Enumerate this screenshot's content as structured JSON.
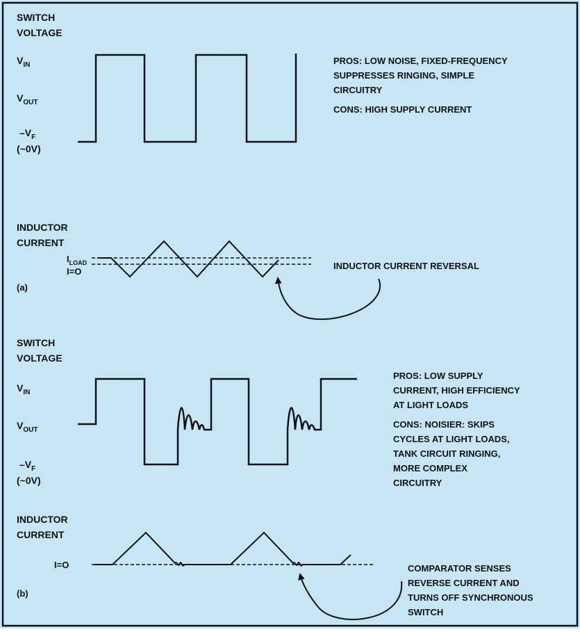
{
  "colors": {
    "background": "#c6e6f6",
    "ink": "#111111",
    "frame": "#111111"
  },
  "panel_a": {
    "switch_voltage_label": [
      "SWITCH",
      "VOLTAGE"
    ],
    "y_labels": {
      "vin": {
        "base": "V",
        "sub": "IN"
      },
      "vout": {
        "base": "V",
        "sub": "OUT"
      },
      "neg_vf": {
        "base": "–V",
        "sub": "F"
      },
      "zero": "(~0V)"
    },
    "notes": [
      "PROS: LOW NOISE, FIXED-FREQUENCY",
      "SUPPRESSES RINGING, SIMPLE",
      "CIRCUITRY",
      "CONS: HIGH SUPPLY CURRENT"
    ],
    "inductor_current_label": [
      "INDUCTOR",
      "CURRENT"
    ],
    "iload": {
      "base": "I",
      "sub": "LOAD"
    },
    "i0": "I=O",
    "part": "(a)",
    "reversal_note": "INDUCTOR CURRENT REVERSAL"
  },
  "panel_b": {
    "switch_voltage_label": [
      "SWITCH",
      "VOLTAGE"
    ],
    "y_labels": {
      "vin": {
        "base": "V",
        "sub": "IN"
      },
      "vout": {
        "base": "V",
        "sub": "OUT"
      },
      "neg_vf": {
        "base": "–V",
        "sub": "F"
      },
      "zero": "(~0V)"
    },
    "notes": [
      "PROS: LOW SUPPLY",
      "CURRENT, HIGH EFFICIENCY",
      "AT LIGHT LOADS",
      "CONS: NOISIER: SKIPS",
      "CYCLES AT LIGHT LOADS,",
      "TANK CIRCUIT RINGING,",
      "MORE COMPLEX",
      "CIRCUITRY"
    ],
    "inductor_current_label": [
      "INDUCTOR",
      "CURRENT"
    ],
    "i0": "I=O",
    "part": "(b)",
    "comparator_note": [
      "COMPARATOR SENSES",
      "REVERSE CURRENT AND",
      "TURNS OFF SYNCHRONOUS",
      "SWITCH"
    ]
  }
}
